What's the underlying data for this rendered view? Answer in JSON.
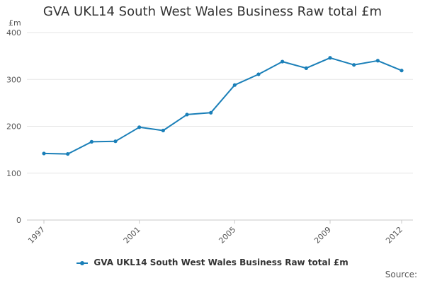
{
  "chart_data": {
    "type": "line",
    "title": "GVA UKL14 South West Wales Business Raw total £m",
    "ylabel": "£m",
    "xlabel": "",
    "x": [
      1997,
      1998,
      1999,
      2000,
      2001,
      2002,
      2003,
      2004,
      2005,
      2006,
      2007,
      2008,
      2009,
      2010,
      2011,
      2012
    ],
    "x_ticks": [
      "1997",
      "2001",
      "2005",
      "2009",
      "2012"
    ],
    "y_ticks": [
      "0",
      "100",
      "200",
      "300",
      "400"
    ],
    "ylim": [
      0,
      400
    ],
    "grid": true,
    "legend_position": "bottom",
    "series": [
      {
        "name": "GVA UKL14 South West Wales Business Raw total £m",
        "color": "#1a7fb8",
        "values": [
          142,
          141,
          167,
          168,
          198,
          191,
          225,
          229,
          288,
          311,
          338,
          324,
          346,
          331,
          340,
          319
        ]
      }
    ]
  },
  "footer": {
    "source_label": "Source:"
  }
}
